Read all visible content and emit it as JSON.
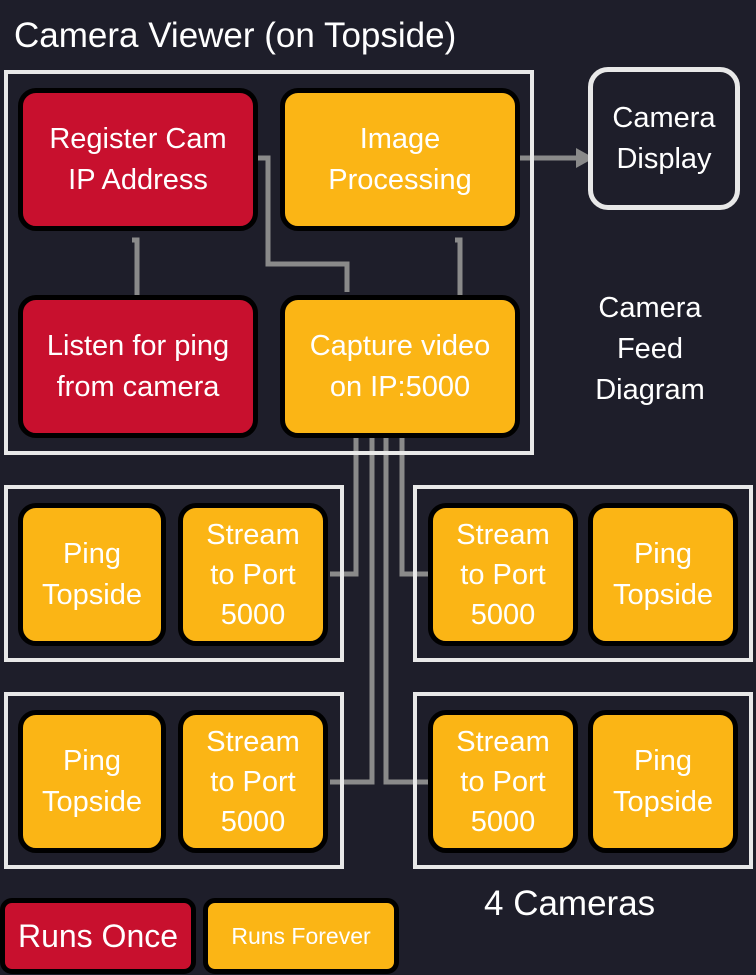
{
  "diagram": {
    "title": "Camera Viewer (on Topside)",
    "side_label": [
      "Camera",
      "Feed",
      "Diagram"
    ],
    "nodes": {
      "register": [
        "Register Cam",
        "IP Address"
      ],
      "image_processing": [
        "Image",
        "Processing"
      ],
      "camera_display": [
        "Camera",
        "Display"
      ],
      "listen": [
        "Listen for ping",
        "from camera"
      ],
      "capture": [
        "Capture video",
        "on IP:5000"
      ]
    },
    "cameras": [
      {
        "ping": [
          "Ping",
          "Topside"
        ],
        "stream": [
          "Stream",
          "to Port",
          "5000"
        ]
      },
      {
        "ping": [
          "Ping",
          "Topside"
        ],
        "stream": [
          "Stream",
          "to Port",
          "5000"
        ]
      },
      {
        "ping": [
          "Ping",
          "Topside"
        ],
        "stream": [
          "Stream",
          "to Port",
          "5000"
        ]
      },
      {
        "ping": [
          "Ping",
          "Topside"
        ],
        "stream": [
          "Stream",
          "to Port",
          "5000"
        ]
      }
    ],
    "cameras_label": "4 Cameras",
    "legend": {
      "once": "Runs Once",
      "forever": "Runs Forever"
    },
    "colors": {
      "background": "#1e1e2a",
      "once": "#c8102e",
      "forever": "#fbb515",
      "frame": "#e8e8e8",
      "wire": "#8a8a8a"
    }
  }
}
